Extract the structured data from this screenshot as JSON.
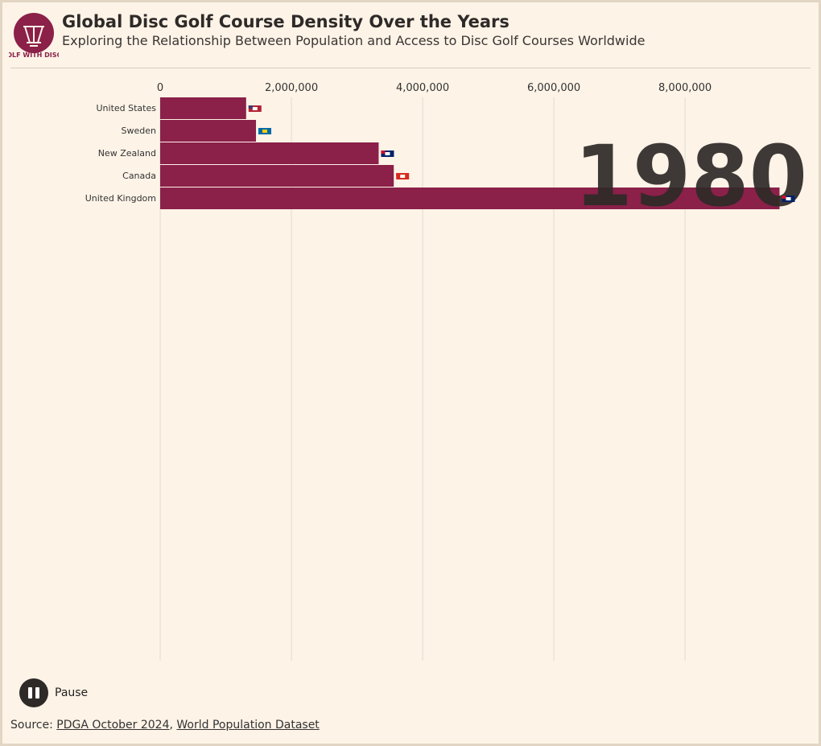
{
  "header": {
    "title": "Global Disc Golf Course Density Over the Years",
    "subtitle": "Exploring the Relationship Between Population and Access to Disc Golf Courses Worldwide",
    "logo_text": "GOLF WITH DISCS"
  },
  "chart_data": {
    "type": "bar",
    "orientation": "horizontal",
    "year": "1980",
    "categories": [
      "United States",
      "Sweden",
      "New Zealand",
      "Canada",
      "United Kingdom"
    ],
    "values": [
      1310000,
      1460000,
      3330000,
      3560000,
      9440000
    ],
    "color": "#8b2049",
    "xlim": [
      0,
      9900000
    ],
    "xticks": [
      0,
      {
        "value": 2000000,
        "label": "2,000,000"
      },
      {
        "value": 4000000,
        "label": "4,000,000"
      },
      {
        "value": 6000000,
        "label": "6,000,000"
      },
      {
        "value": 8000000,
        "label": "8,000,000"
      }
    ],
    "grid": true
  },
  "controls": {
    "pause": "Pause"
  },
  "source": {
    "label": "Source:",
    "links": [
      "PDGA October 2024",
      "World Population Dataset"
    ],
    "separator": ","
  }
}
